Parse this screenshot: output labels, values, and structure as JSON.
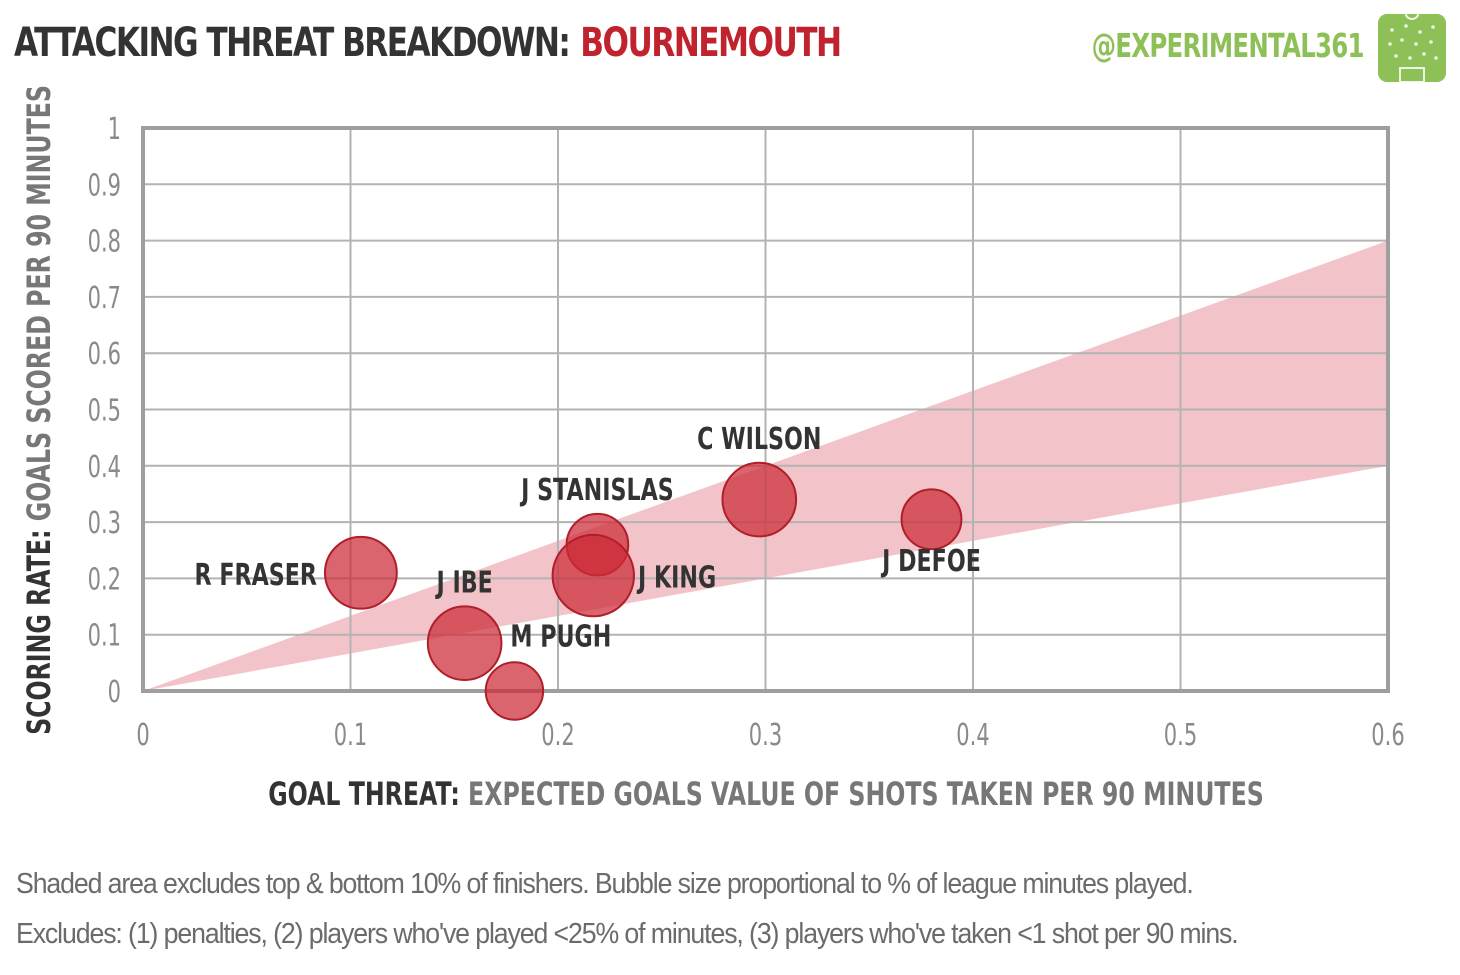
{
  "header": {
    "title_prefix": "ATTACKING THREAT BREAKDOWN:",
    "title_team": "BOURNEMOUTH",
    "handle": "@EXPERIMENTAL361",
    "logo_icon": "pitch-icon"
  },
  "colors": {
    "accent": "#c0232e",
    "bubble": "#cc2a36",
    "band": "#f2c4c9",
    "handle": "#8dc056",
    "grid": "#b3b3b3",
    "frame": "#9e9e9e"
  },
  "chart_data": {
    "type": "scatter",
    "subtype": "bubble",
    "x": {
      "label_bold": "GOAL THREAT:",
      "label_rest": "EXPECTED GOALS VALUE OF SHOTS TAKEN PER 90 MINUTES",
      "min": 0,
      "max": 0.6,
      "ticks": [
        "0",
        "0.1",
        "0.2",
        "0.3",
        "0.4",
        "0.5",
        "0.6"
      ]
    },
    "y": {
      "label_bold": "SCORING RATE:",
      "label_rest": "GOALS SCORED PER 90 MINUTES",
      "min": 0,
      "max": 1,
      "ticks": [
        "0",
        "0.1",
        "0.2",
        "0.3",
        "0.4",
        "0.5",
        "0.6",
        "0.7",
        "0.8",
        "0.9",
        "1"
      ]
    },
    "band": {
      "description": "Shaded area excludes top & bottom 10% of finishers",
      "upper_at_x_max": 0.8,
      "lower_at_x_max": 0.4
    },
    "grid": true,
    "points": [
      {
        "name": "R FRASER",
        "x": 0.105,
        "y": 0.21,
        "size": 0.53,
        "label_pos": "left"
      },
      {
        "name": "J IBE",
        "x": 0.155,
        "y": 0.085,
        "size": 0.56,
        "label_pos": "top-left"
      },
      {
        "name": "M PUGH",
        "x": 0.179,
        "y": 0.0,
        "size": 0.29,
        "label_pos": "top-right"
      },
      {
        "name": "J STANISLAS",
        "x": 0.219,
        "y": 0.26,
        "size": 0.36,
        "label_pos": "top"
      },
      {
        "name": "J KING",
        "x": 0.217,
        "y": 0.205,
        "size": 0.69,
        "label_pos": "right"
      },
      {
        "name": "C WILSON",
        "x": 0.297,
        "y": 0.34,
        "size": 0.56,
        "label_pos": "top"
      },
      {
        "name": "J DEFOE",
        "x": 0.38,
        "y": 0.305,
        "size": 0.33,
        "label_pos": "bottom"
      }
    ]
  },
  "notes": {
    "line1": "Shaded area excludes top & bottom 10% of finishers. Bubble size proportional to % of league minutes played.",
    "line2": "Excludes: (1) penalties, (2) players who've played <25% of minutes, (3) players who've taken <1 shot per 90 mins."
  }
}
